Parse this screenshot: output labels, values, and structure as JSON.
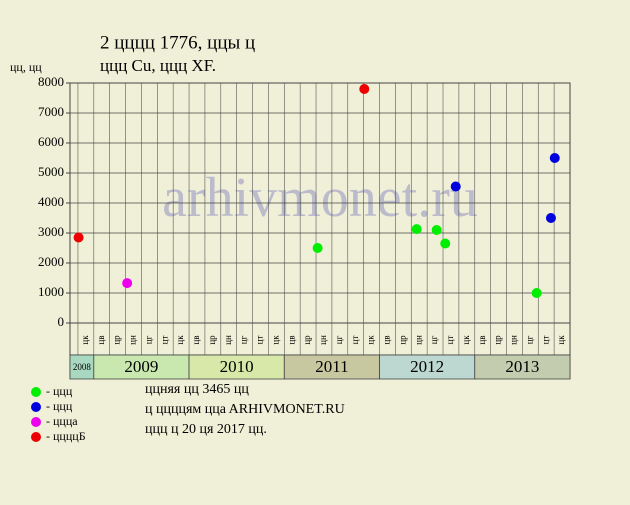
{
  "chart_data": {
    "type": "scatter",
    "title": "2 цццц 1776, ццы ц",
    "subtitle": "ццц Cu, ццц XF.",
    "y_label": "цц, цц",
    "watermark": "arhivmonet.ru",
    "xlim": [
      2008.75,
      2014
    ],
    "ylim": [
      0,
      8000
    ],
    "yticks": [
      0,
      1000,
      2000,
      3000,
      4000,
      5000,
      6000,
      7000,
      8000
    ],
    "grid": true,
    "years": [
      "2008",
      "2009",
      "2010",
      "2011",
      "2012",
      "2013"
    ],
    "year_colors": [
      "#a8d8c0",
      "#c8e8b0",
      "#d8e8a8",
      "#c8c8a0",
      "#bcd8d0",
      "#c4ccb0"
    ],
    "categories": [
      "цк",
      "цв",
      "цр",
      "цн",
      "цг",
      "цт",
      "цк",
      "цв",
      "цр",
      "цн",
      "цг",
      "цт",
      "цк",
      "цв",
      "цр",
      "цн",
      "цг",
      "цт",
      "цк",
      "цв",
      "цр",
      "цн",
      "цг",
      "цт",
      "цк",
      "цв",
      "цр",
      "цн",
      "цг",
      "цт",
      "цк"
    ],
    "series": [
      {
        "name": "ццц",
        "color": "#00ee00",
        "x": [
          2011.35,
          2012.39,
          2012.6,
          2012.69,
          2013.65
        ],
        "values": [
          2500,
          3130,
          3100,
          2650,
          1000
        ]
      },
      {
        "name": "ццц",
        "color": "#0000dd",
        "x": [
          2012.8,
          2013.8,
          2013.84
        ],
        "values": [
          4550,
          3500,
          5500
        ]
      },
      {
        "name": "цццa",
        "color": "#ee00ee",
        "x": [
          2009.35
        ],
        "values": [
          1330
        ]
      },
      {
        "name": "ццццБ",
        "color": "#ee0000",
        "x": [
          2008.84,
          2011.84
        ],
        "values": [
          2850,
          7800
        ]
      }
    ],
    "legend_prefix": "- ",
    "notes": [
      "ццняя цц 3465 цц",
      "ц ццццям ццa ARHIVMONET.RU",
      "ццц ц 20 ця 2017 цц."
    ]
  }
}
